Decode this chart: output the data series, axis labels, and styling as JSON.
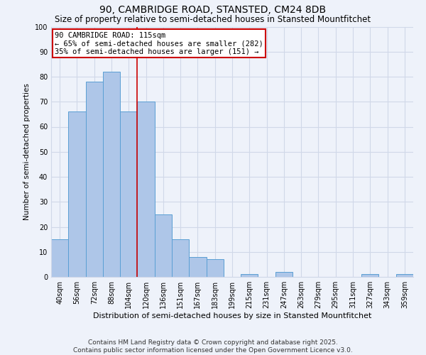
{
  "title": "90, CAMBRIDGE ROAD, STANSTED, CM24 8DB",
  "subtitle": "Size of property relative to semi-detached houses in Stansted Mountfitchet",
  "xlabel": "Distribution of semi-detached houses by size in Stansted Mountfitchet",
  "ylabel": "Number of semi-detached properties",
  "categories": [
    "40sqm",
    "56sqm",
    "72sqm",
    "88sqm",
    "104sqm",
    "120sqm",
    "136sqm",
    "151sqm",
    "167sqm",
    "183sqm",
    "199sqm",
    "215sqm",
    "231sqm",
    "247sqm",
    "263sqm",
    "279sqm",
    "295sqm",
    "311sqm",
    "327sqm",
    "343sqm",
    "359sqm"
  ],
  "values": [
    15,
    66,
    78,
    82,
    66,
    70,
    25,
    15,
    8,
    7,
    0,
    1,
    0,
    2,
    0,
    0,
    0,
    0,
    1,
    0,
    1
  ],
  "bar_color": "#aec6e8",
  "bar_edge_color": "#5a9fd4",
  "vline_x_index": 4.5,
  "vline_color": "#cc0000",
  "annotation_text": "90 CAMBRIDGE ROAD: 115sqm\n← 65% of semi-detached houses are smaller (282)\n35% of semi-detached houses are larger (151) →",
  "annotation_box_color": "#ffffff",
  "annotation_box_edge_color": "#cc0000",
  "ylim": [
    0,
    100
  ],
  "yticks": [
    0,
    10,
    20,
    30,
    40,
    50,
    60,
    70,
    80,
    90,
    100
  ],
  "grid_color": "#d0d8e8",
  "background_color": "#eef2fa",
  "footer": "Contains HM Land Registry data © Crown copyright and database right 2025.\nContains public sector information licensed under the Open Government Licence v3.0.",
  "title_fontsize": 10,
  "subtitle_fontsize": 8.5,
  "xlabel_fontsize": 8,
  "ylabel_fontsize": 7.5,
  "tick_fontsize": 7,
  "annotation_fontsize": 7.5,
  "footer_fontsize": 6.5
}
